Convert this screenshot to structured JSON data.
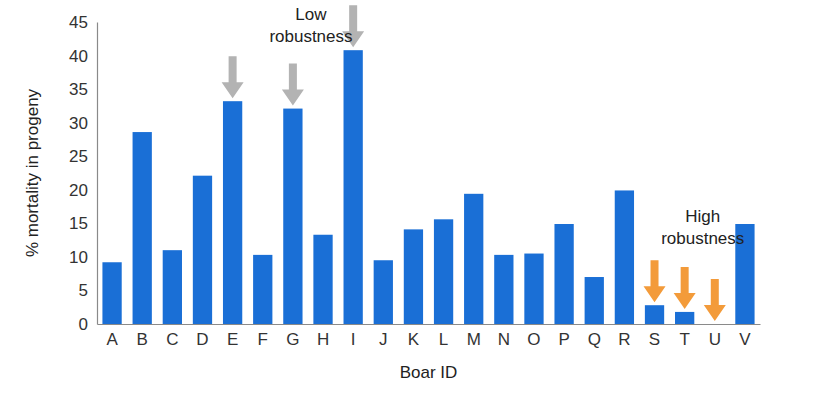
{
  "chart_data": {
    "type": "bar",
    "x_label": "Boar ID",
    "y_label": "% mortality in progeny",
    "categories": [
      "A",
      "B",
      "C",
      "D",
      "E",
      "F",
      "G",
      "H",
      "I",
      "J",
      "K",
      "L",
      "M",
      "N",
      "O",
      "P",
      "Q",
      "R",
      "S",
      "T",
      "U",
      "V"
    ],
    "values": [
      9.2,
      28.6,
      11,
      22.1,
      33.2,
      10.3,
      32.1,
      13.3,
      40.8,
      9.5,
      14.1,
      15.6,
      19.4,
      10.3,
      10.5,
      14.9,
      7,
      19.9,
      2.8,
      1.8,
      0,
      14.9
    ],
    "color": "#1a6fd6",
    "ylim": [
      0,
      45
    ],
    "yticks": [
      0,
      5,
      10,
      15,
      20,
      25,
      30,
      35,
      40,
      45
    ],
    "grid": false,
    "annotations": [
      {
        "text": [
          "Low",
          "robustness"
        ],
        "categories": [
          "E",
          "G",
          "I"
        ],
        "color": "#b3b3b3"
      },
      {
        "text": [
          "High",
          "robustness"
        ],
        "categories": [
          "S",
          "T",
          "U"
        ],
        "color": "#f39b3a"
      }
    ]
  }
}
